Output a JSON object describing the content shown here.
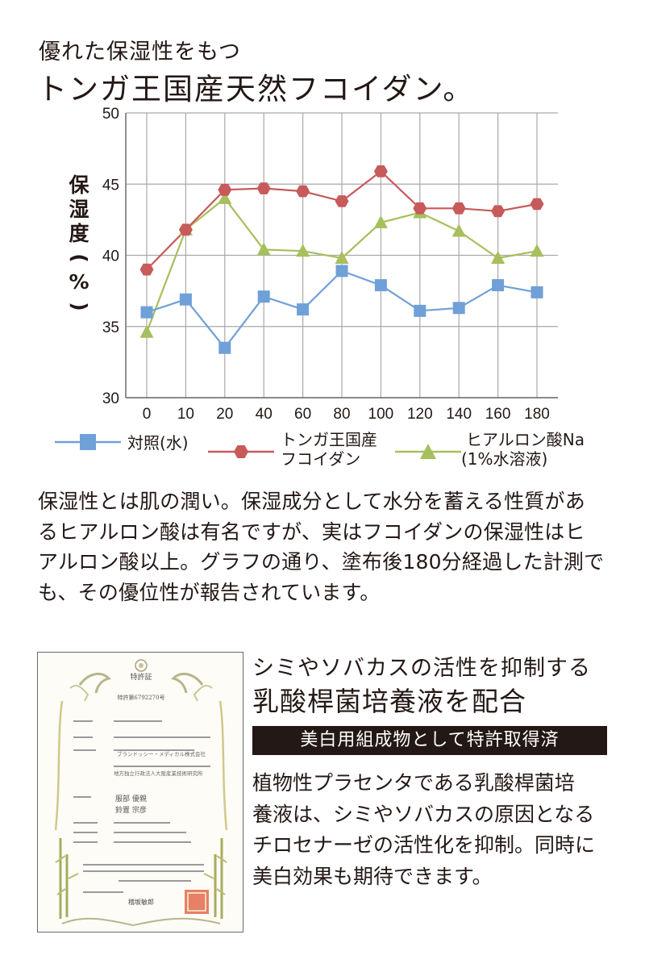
{
  "heading": {
    "subtitle": "優れた保湿性をもつ",
    "title": "トンガ王国産天然フコイダン。"
  },
  "chart_data": {
    "type": "line",
    "x": [
      0,
      10,
      20,
      40,
      60,
      80,
      100,
      120,
      140,
      160,
      180
    ],
    "ylabel": "保湿度(%)",
    "ylim": [
      30,
      50
    ],
    "yticks": [
      30,
      35,
      40,
      45,
      50
    ],
    "grid": true,
    "legend_position": "bottom",
    "series": [
      {
        "name": "対照(水)",
        "color": "#6fa0d8",
        "marker": "square",
        "values": [
          36.0,
          36.9,
          33.5,
          37.1,
          36.2,
          38.9,
          37.9,
          36.1,
          36.3,
          37.9,
          37.4
        ]
      },
      {
        "name": "トンガ王国産フコイダン",
        "name_lines": [
          "トンガ王国産",
          "フコイダン"
        ],
        "color": "#c75a5a",
        "marker": "hexagon",
        "values": [
          39.0,
          41.8,
          44.6,
          44.7,
          44.5,
          43.8,
          45.9,
          43.3,
          43.3,
          43.1,
          43.6
        ]
      },
      {
        "name": "ヒアルロン酸Na(1%水溶液)",
        "name_lines": [
          "ヒアルロン酸Na",
          "(1%水溶液)"
        ],
        "color": "#a7bf5c",
        "marker": "triangle",
        "values": [
          34.6,
          41.8,
          44.0,
          40.4,
          40.3,
          39.8,
          42.3,
          43.0,
          41.7,
          39.8,
          40.3
        ]
      }
    ]
  },
  "ylabel_chars": [
    "保",
    "湿",
    "度",
    "(",
    "%",
    ")"
  ],
  "description_lines": [
    "保湿性とは肌の潤い。保湿成分として水分を蓄える性質があ",
    "るヒアルロン酸は有名ですが、実はフコイダンの保湿性はヒ",
    "アルロン酸以上。グラフの通り、塗布後180分経過した計測で",
    "も、その優位性が報告されています。"
  ],
  "certificate": {
    "title": "特許証",
    "number": "特許第6792270号",
    "applicant": "ブランドッシー・メディカル株式会社",
    "institute": "地方独立行政法人大阪産業技術研究所",
    "inventors": [
      "服部 優親",
      "鈴置 宗彦"
    ],
    "signature": "稽坂敏郎",
    "seal": "特許庁長官之印"
  },
  "section": {
    "subtitle": "シミやソバカスの活性を抑制する",
    "title": "乳酸桿菌培養液を配合",
    "patent_label": "美白用組成物として特許取得済",
    "description_lines": [
      "植物性プラセンタである乳酸桿菌培",
      "養液は、シミやソバカスの原因となる",
      "チロセナーゼの活性化を抑制。同時に",
      "美白効果も期待できます。"
    ]
  }
}
